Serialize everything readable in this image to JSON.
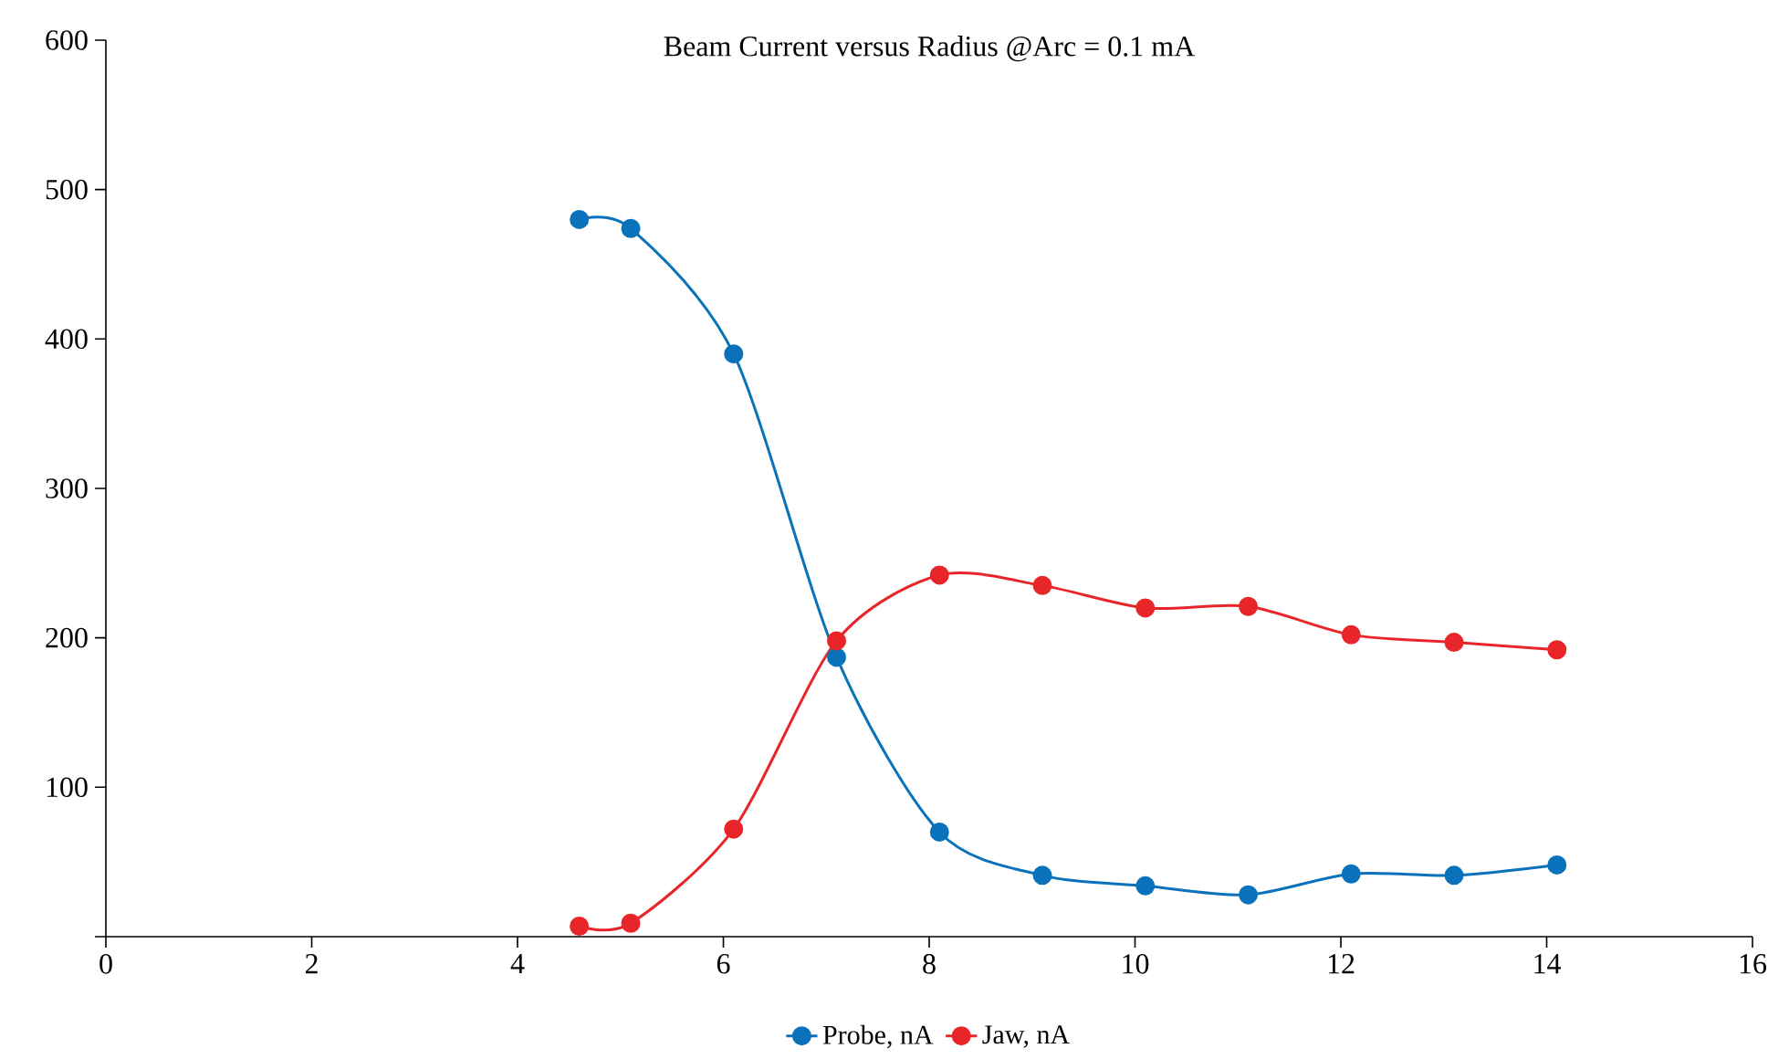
{
  "chart_data": {
    "type": "line",
    "title": "Beam Current versus Radius @Arc = 0.1 mA",
    "x": [
      4.6,
      5.1,
      6.1,
      7.1,
      8.1,
      9.1,
      10.1,
      11.1,
      12.1,
      13.1,
      14.1
    ],
    "series": [
      {
        "name": "Probe, nA",
        "color": "#0a72ba",
        "values": [
          480,
          474,
          390,
          187,
          70,
          41,
          34,
          28,
          42,
          41,
          48
        ]
      },
      {
        "name": "Jaw, nA",
        "color": "#e8262a",
        "values": [
          7,
          9,
          72,
          198,
          242,
          235,
          220,
          221,
          202,
          197,
          192
        ]
      }
    ],
    "xlim": [
      0,
      16
    ],
    "xticks": [
      0,
      2,
      4,
      6,
      8,
      10,
      12,
      14,
      16
    ],
    "ylim": [
      0,
      600
    ],
    "yticks": [
      {
        "value": 0,
        "label": null
      },
      100,
      200,
      300,
      400,
      500,
      600
    ],
    "grid": false,
    "legend": "bottom",
    "marker": "circle",
    "line_style": "solid"
  }
}
